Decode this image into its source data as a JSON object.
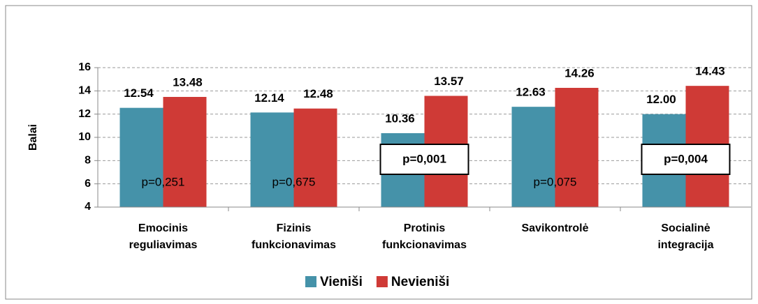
{
  "chart_data": {
    "type": "bar",
    "categories": [
      [
        "Emocinis",
        "reguliavimas"
      ],
      [
        "Fizinis",
        "funkcionavimas"
      ],
      [
        "Protinis",
        "funkcionavimas"
      ],
      [
        "Savikontrolė"
      ],
      [
        "Socialinė",
        "integracija"
      ]
    ],
    "series": [
      {
        "name": "Vieniši",
        "color": "#4592a9",
        "values": [
          12.54,
          12.14,
          10.36,
          12.63,
          12
        ],
        "value_labels": [
          "12.54",
          "12.14",
          "10.36",
          "12.63",
          "12.00"
        ]
      },
      {
        "name": "Nevieniši",
        "color": "#cf3a36",
        "values": [
          13.48,
          12.48,
          13.57,
          14.26,
          14.43
        ],
        "value_labels": [
          "13.48",
          "12.48",
          "13.57",
          "14.26",
          "14.43"
        ]
      }
    ],
    "ylabel": "Balai",
    "ylim": [
      4,
      16
    ],
    "yticks": [
      4,
      6,
      8,
      10,
      12,
      14,
      16
    ],
    "grid": true,
    "annotations": [
      {
        "text": "p=0,251",
        "boxed": false
      },
      {
        "text": "p=0,675",
        "boxed": false
      },
      {
        "text": "p=0,001",
        "boxed": true
      },
      {
        "text": "p=0,075",
        "boxed": false
      },
      {
        "text": "p=0,004",
        "boxed": true
      }
    ],
    "legend": "bottom"
  }
}
